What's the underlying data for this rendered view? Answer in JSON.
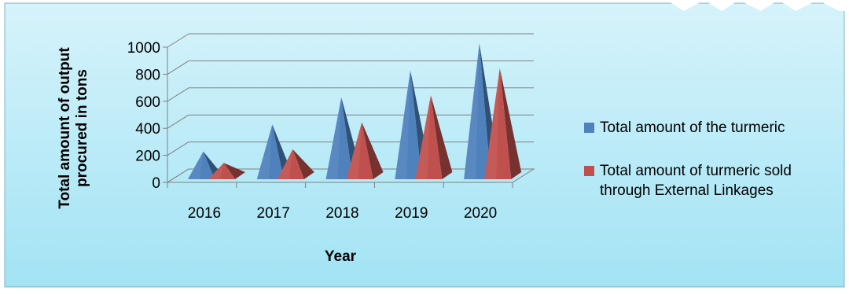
{
  "chart_data": {
    "type": "bar",
    "style": "3d-pyramid",
    "categories": [
      "2016",
      "2017",
      "2018",
      "2019",
      "2020"
    ],
    "series": [
      {
        "name": "Total amount of the turmeric",
        "values": [
          200,
          400,
          600,
          800,
          1000
        ],
        "color": "#4f81bd"
      },
      {
        "name": "Total amount of turmeric sold through External Linkages",
        "values": [
          100,
          200,
          400,
          600,
          800
        ],
        "color": "#c0504d"
      }
    ],
    "legend": {
      "placement": "right",
      "entries": [
        {
          "lines": [
            "Total amount of the turmeric"
          ]
        },
        {
          "lines": [
            "Total amount of turmeric sold",
            "through External Linkages"
          ]
        }
      ]
    },
    "xlabel": "Year",
    "ylabel_lines": [
      "Total amount of output",
      "procured in tons"
    ],
    "ylim": [
      0,
      1000
    ],
    "yticks": [
      "0",
      "200",
      "400",
      "600",
      "800",
      "1000"
    ],
    "grid": true,
    "background": "#a8e6f5"
  }
}
